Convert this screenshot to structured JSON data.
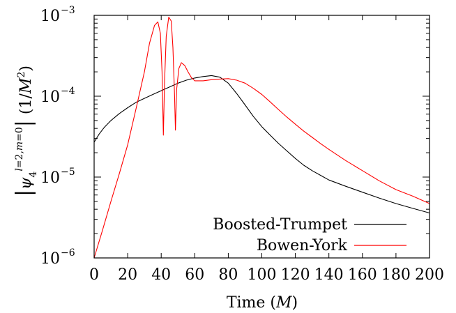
{
  "chart_data": {
    "type": "line",
    "xlabel": "Time (M)",
    "ylabel": "|ψ4 l=2,m=0| (1/M²)",
    "xlim": [
      0,
      200
    ],
    "ylim": [
      1e-06,
      0.001
    ],
    "yscale": "log",
    "grid": false,
    "legend_position": "bottom-right",
    "x_ticks": [
      0,
      20,
      40,
      60,
      80,
      100,
      120,
      140,
      160,
      180,
      200
    ],
    "y_ticks": [
      {
        "value": 1e-06,
        "base": "10",
        "exp": "−6"
      },
      {
        "value": 1e-05,
        "base": "10",
        "exp": "−5"
      },
      {
        "value": 0.0001,
        "base": "10",
        "exp": "−4"
      },
      {
        "value": 0.001,
        "base": "10",
        "exp": "−3"
      }
    ],
    "series": [
      {
        "name": "Boosted-Trumpet",
        "color": "#000000",
        "points": [
          [
            0,
            2.7e-05
          ],
          [
            3,
            3.4e-05
          ],
          [
            6,
            4.1e-05
          ],
          [
            10,
            5e-05
          ],
          [
            15,
            6.1e-05
          ],
          [
            20,
            7.2e-05
          ],
          [
            25,
            8.4e-05
          ],
          [
            30,
            9.4e-05
          ],
          [
            35,
            0.000105
          ],
          [
            40,
            0.000117
          ],
          [
            45,
            0.00013
          ],
          [
            50,
            0.000145
          ],
          [
            55,
            0.000158
          ],
          [
            60,
            0.000168
          ],
          [
            65,
            0.000175
          ],
          [
            70,
            0.00018
          ],
          [
            75,
            0.000172
          ],
          [
            80,
            0.000145
          ],
          [
            85,
            0.000108
          ],
          [
            90,
            7.8e-05
          ],
          [
            95,
            5.6e-05
          ],
          [
            100,
            4.2e-05
          ],
          [
            105,
            3.3e-05
          ],
          [
            110,
            2.6e-05
          ],
          [
            115,
            2.1e-05
          ],
          [
            120,
            1.7e-05
          ],
          [
            125,
            1.4e-05
          ],
          [
            130,
            1.2e-05
          ],
          [
            135,
            1.05e-05
          ],
          [
            140,
            9.2e-06
          ],
          [
            150,
            7.7e-06
          ],
          [
            160,
            6.5e-06
          ],
          [
            170,
            5.5e-06
          ],
          [
            180,
            4.7e-06
          ],
          [
            190,
            4.1e-06
          ],
          [
            200,
            3.6e-06
          ]
        ]
      },
      {
        "name": "Bowen-York",
        "color": "#ff0000",
        "points": [
          [
            0,
            1e-06
          ],
          [
            5,
            2.2e-06
          ],
          [
            10,
            5e-06
          ],
          [
            15,
            1.1e-05
          ],
          [
            20,
            2.5e-05
          ],
          [
            25,
            7e-05
          ],
          [
            30,
            0.0002
          ],
          [
            33,
            0.00045
          ],
          [
            36,
            0.00075
          ],
          [
            38,
            0.00083
          ],
          [
            39.5,
            0.0006
          ],
          [
            40.5,
            0.0002
          ],
          [
            41.3,
            3.3e-05
          ],
          [
            42,
            0.00015
          ],
          [
            43,
            0.00055
          ],
          [
            44.5,
            0.00095
          ],
          [
            46,
            0.00085
          ],
          [
            47,
            0.0004
          ],
          [
            48,
            0.0001
          ],
          [
            48.5,
            3.8e-05
          ],
          [
            49.2,
            0.00012
          ],
          [
            50.5,
            0.00022
          ],
          [
            52,
            0.00026
          ],
          [
            54,
            0.00024
          ],
          [
            56,
            0.0002
          ],
          [
            58,
            0.00017
          ],
          [
            60,
            0.000155
          ],
          [
            65,
            0.000155
          ],
          [
            70,
            0.00016
          ],
          [
            75,
            0.000163
          ],
          [
            80,
            0.000165
          ],
          [
            85,
            0.000158
          ],
          [
            90,
            0.000145
          ],
          [
            95,
            0.000125
          ],
          [
            100,
            0.000105
          ],
          [
            105,
            8.5e-05
          ],
          [
            110,
            6.8e-05
          ],
          [
            115,
            5.5e-05
          ],
          [
            120,
            4.5e-05
          ],
          [
            125,
            3.7e-05
          ],
          [
            130,
            3.1e-05
          ],
          [
            135,
            2.6e-05
          ],
          [
            140,
            2.2e-05
          ],
          [
            150,
            1.6e-05
          ],
          [
            160,
            1.2e-05
          ],
          [
            170,
            9e-06
          ],
          [
            180,
            7e-06
          ],
          [
            190,
            5.8e-06
          ],
          [
            200,
            4.7e-06
          ]
        ]
      }
    ]
  }
}
